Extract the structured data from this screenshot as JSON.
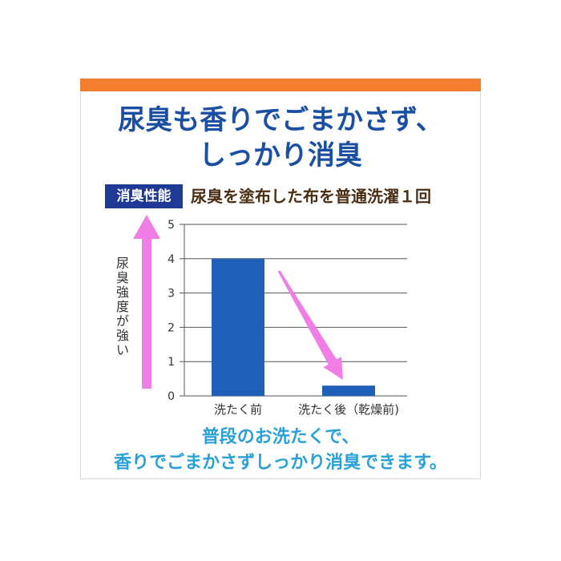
{
  "headline": {
    "line1": "尿臭も香りでごまかさず、",
    "line2": "しっかり消臭"
  },
  "badge": {
    "label": "消臭性能"
  },
  "subtitle": {
    "text": "尿臭を塗布した布を普通洗濯１回"
  },
  "chart_data": {
    "type": "bar",
    "title": "尿臭を塗布した布を普通洗濯１回",
    "categories": [
      "洗たく前",
      "洗たく後（乾燥前)"
    ],
    "values": [
      4.0,
      0.3
    ],
    "ylabel": "尿臭強度が強い",
    "yticks": [
      0,
      1,
      2,
      3,
      4,
      5
    ],
    "ylim": [
      0,
      5
    ],
    "grid": true,
    "bar_color": "#1f5fb8",
    "arrow_color": "#f07ee6"
  },
  "bottom": {
    "line1": "普段のお洗たくで、",
    "line2": "香りでごまかさずしっかり消臭できます。"
  },
  "colors": {
    "accent_bar": "#f47e30",
    "headline": "#1b4fa3",
    "badge_bg": "#1f3a94",
    "subtitle": "#4a2e14",
    "bottom_text": "#2aa0d8"
  }
}
